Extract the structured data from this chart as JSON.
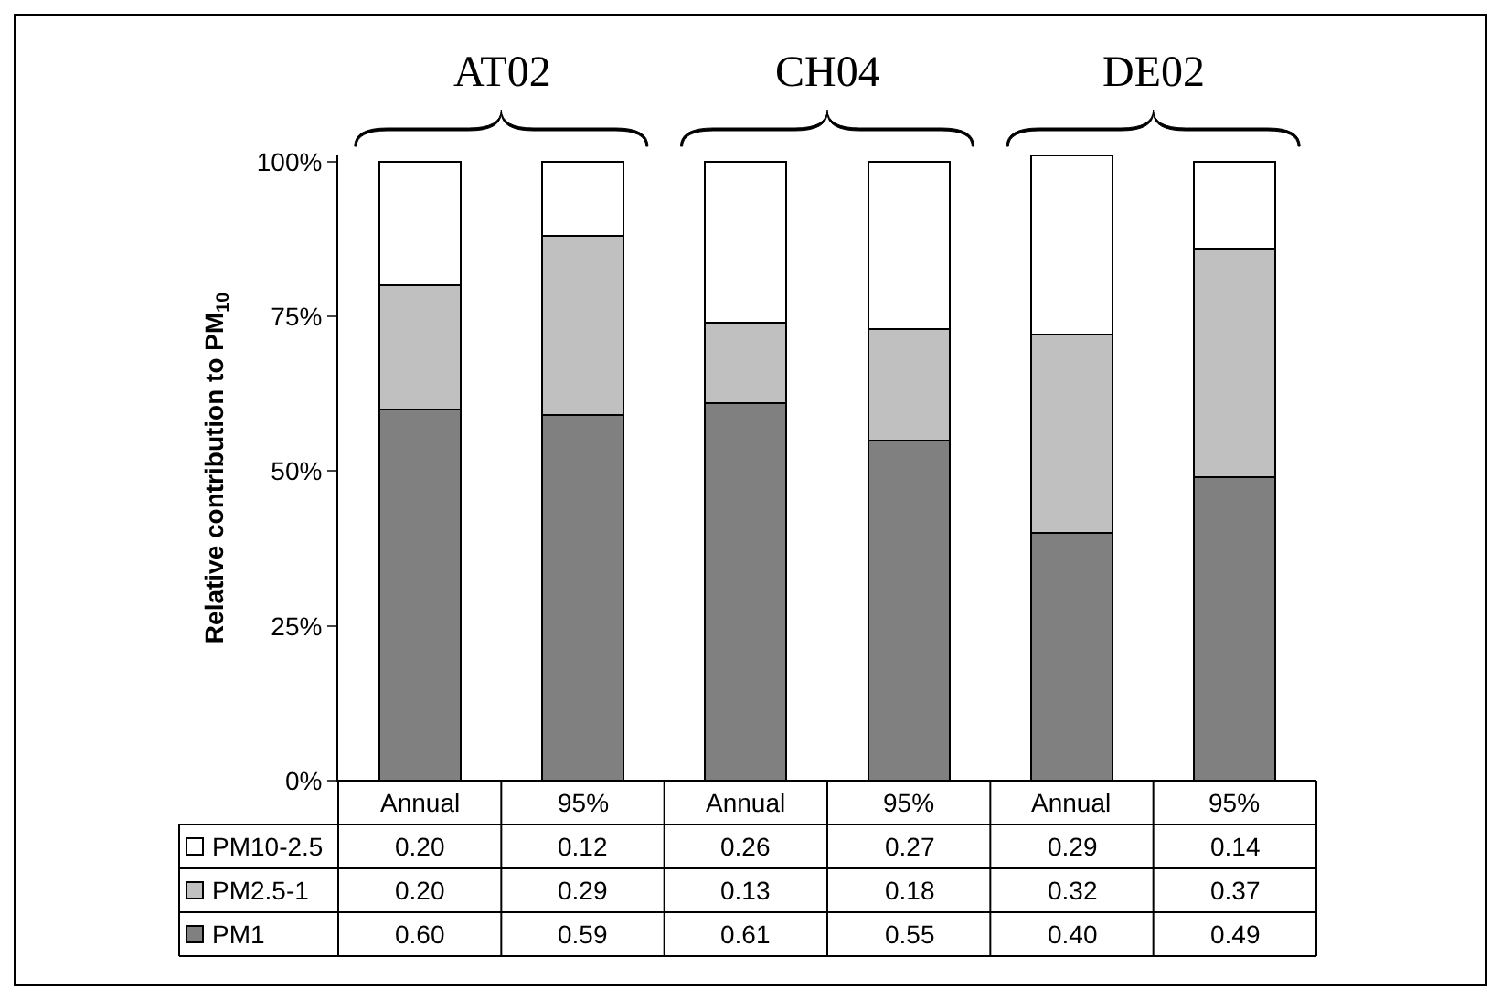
{
  "chart_data": {
    "type": "bar",
    "stacked": true,
    "ylabel": "Relative contribution to PM$_{10}$",
    "categories": [
      "Annual",
      "95%",
      "Annual",
      "95%",
      "Annual",
      "95%"
    ],
    "annotations": [
      "AT02",
      "CH04",
      "DE02"
    ],
    "ylim": [
      0,
      1.01
    ],
    "legend": "bottom left",
    "yticks": [
      {
        "value": 0,
        "label": "0%"
      },
      {
        "value": 0.25,
        "label": "25%"
      },
      {
        "value": 0.5,
        "label": "50%"
      },
      {
        "value": 0.75,
        "label": "75%"
      },
      {
        "value": 1,
        "label": "100%"
      }
    ],
    "series": [
      {
        "name": "PM1",
        "color": "#808080",
        "values": [
          0.6,
          0.59,
          0.61,
          0.55,
          0.4,
          0.49
        ],
        "value_labels": [
          "0.60",
          "0.59",
          "0.61",
          "0.55",
          "0.40",
          "0.49"
        ]
      },
      {
        "name": "PM2.5-1",
        "color": "#c0c0c0",
        "values": [
          0.2,
          0.29,
          0.13,
          0.18,
          0.32,
          0.37
        ],
        "value_labels": [
          "0.20",
          "0.29",
          "0.13",
          "0.18",
          "0.32",
          "0.37"
        ]
      },
      {
        "name": "PM10-2.5",
        "color": "#ffffff",
        "values": [
          0.2,
          0.12,
          0.26,
          0.27,
          0.29,
          0.14
        ],
        "value_labels": [
          "0.20",
          "0.12",
          "0.26",
          "0.27",
          "0.29",
          "0.14"
        ]
      }
    ]
  }
}
